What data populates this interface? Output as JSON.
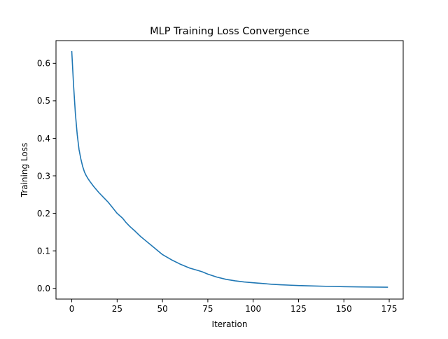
{
  "chart_data": {
    "type": "line",
    "title": "MLP Training Loss Convergence",
    "xlabel": "Iteration",
    "ylabel": "Training Loss",
    "xlim": [
      -8.7,
      182.7
    ],
    "ylim": [
      -0.0286,
      0.6604
    ],
    "xticks": [
      0,
      25,
      50,
      75,
      100,
      125,
      150,
      175
    ],
    "yticks": [
      0.0,
      0.1,
      0.2,
      0.3,
      0.4,
      0.5,
      0.6
    ],
    "grid": false,
    "legend": "none",
    "series": [
      {
        "color": "#1f77b4",
        "x": [
          0,
          1,
          2,
          3,
          4,
          5,
          6,
          7,
          8,
          9,
          10,
          12,
          15,
          18,
          20,
          22,
          25,
          28,
          30,
          32,
          35,
          38,
          40,
          45,
          50,
          55,
          60,
          65,
          70,
          72,
          75,
          80,
          85,
          90,
          95,
          100,
          105,
          110,
          115,
          120,
          125,
          130,
          140,
          150,
          160,
          170,
          174
        ],
        "y": [
          0.631,
          0.54,
          0.465,
          0.41,
          0.37,
          0.345,
          0.325,
          0.31,
          0.3,
          0.292,
          0.285,
          0.272,
          0.255,
          0.24,
          0.23,
          0.218,
          0.2,
          0.187,
          0.175,
          0.165,
          0.152,
          0.138,
          0.13,
          0.11,
          0.09,
          0.076,
          0.064,
          0.054,
          0.047,
          0.044,
          0.038,
          0.03,
          0.024,
          0.02,
          0.017,
          0.015,
          0.013,
          0.011,
          0.0095,
          0.0085,
          0.0075,
          0.0068,
          0.0055,
          0.0045,
          0.0038,
          0.0032,
          0.003
        ]
      }
    ]
  }
}
